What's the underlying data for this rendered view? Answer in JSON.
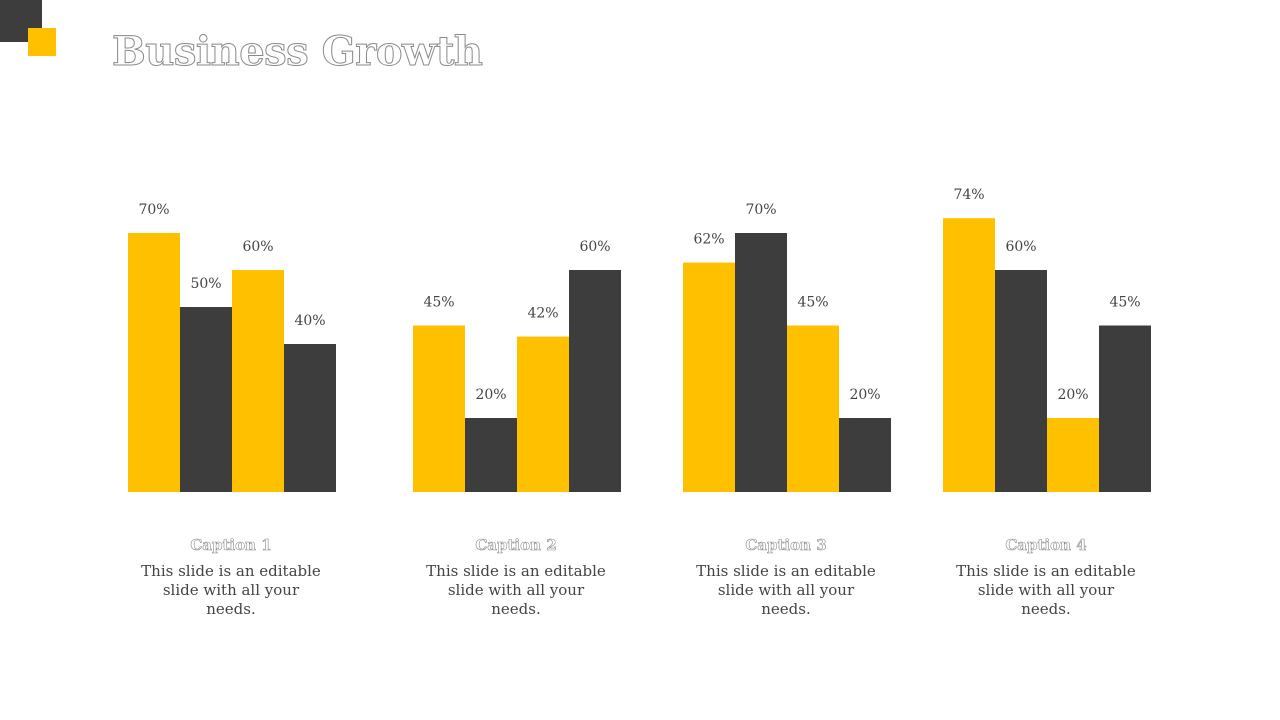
{
  "title": "Business Growth",
  "colors": {
    "yellow": "#ffc000",
    "dark": "#3d3d3d"
  },
  "chart_data": {
    "type": "bar",
    "ylim": [
      0,
      100
    ],
    "groups": [
      {
        "values": [
          70,
          50,
          60,
          40
        ],
        "labels": [
          "70%",
          "50%",
          "60%",
          "40%"
        ]
      },
      {
        "values": [
          45,
          20,
          42,
          60
        ],
        "labels": [
          "45%",
          "20%",
          "42%",
          "60%"
        ]
      },
      {
        "values": [
          62,
          70,
          45,
          20
        ],
        "labels": [
          "62%",
          "70%",
          "45%",
          "20%"
        ]
      },
      {
        "values": [
          74,
          60,
          20,
          45
        ],
        "labels": [
          "74%",
          "60%",
          "20%",
          "45%"
        ]
      }
    ]
  },
  "captions": [
    {
      "title": "Caption 1",
      "text": "This slide is an editable slide with all your needs."
    },
    {
      "title": "Caption 2",
      "text": "This slide is an editable slide with all your needs."
    },
    {
      "title": "Caption 3",
      "text": "This slide is an editable slide with all your needs."
    },
    {
      "title": "Caption 4",
      "text": "This slide is an editable slide with all your needs."
    }
  ]
}
